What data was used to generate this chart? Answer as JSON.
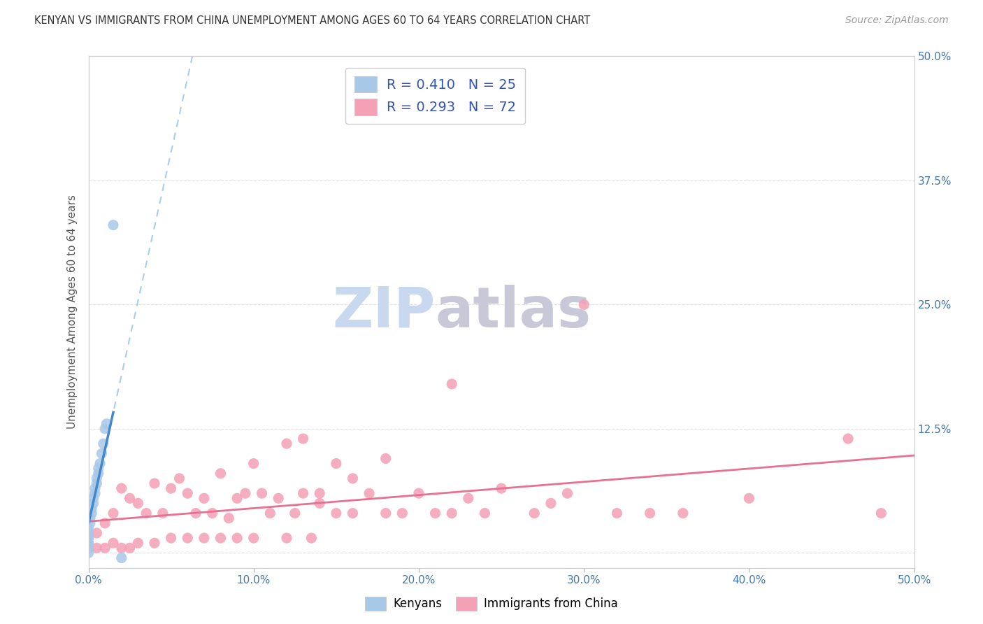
{
  "title": "KENYAN VS IMMIGRANTS FROM CHINA UNEMPLOYMENT AMONG AGES 60 TO 64 YEARS CORRELATION CHART",
  "source": "Source: ZipAtlas.com",
  "ylabel": "Unemployment Among Ages 60 to 64 years",
  "xlim": [
    0.0,
    0.5
  ],
  "ylim": [
    0.0,
    0.5
  ],
  "xticks": [
    0.0,
    0.1,
    0.2,
    0.3,
    0.4,
    0.5
  ],
  "yticks": [
    0.0,
    0.125,
    0.25,
    0.375,
    0.5
  ],
  "xticklabels": [
    "0.0%",
    "10.0%",
    "20.0%",
    "30.0%",
    "40.0%",
    "50.0%"
  ],
  "yticklabels_right": [
    "",
    "12.5%",
    "25.0%",
    "37.5%",
    "50.0%"
  ],
  "kenyan_color": "#a8c8e8",
  "china_color": "#f4a0b5",
  "kenyan_line_color": "#4488cc",
  "china_line_color": "#e87090",
  "kenyan_R": 0.41,
  "kenyan_N": 25,
  "china_R": 0.293,
  "china_N": 72,
  "kenyan_scatter_x": [
    0.0,
    0.0,
    0.0,
    0.0,
    0.0,
    0.0,
    0.001,
    0.001,
    0.002,
    0.002,
    0.003,
    0.003,
    0.004,
    0.004,
    0.005,
    0.005,
    0.006,
    0.006,
    0.007,
    0.008,
    0.009,
    0.01,
    0.011,
    0.015,
    0.02
  ],
  "kenyan_scatter_y": [
    0.0,
    0.005,
    0.01,
    0.015,
    0.02,
    0.025,
    0.03,
    0.035,
    0.04,
    0.045,
    0.05,
    0.055,
    0.06,
    0.065,
    0.07,
    0.075,
    0.08,
    0.085,
    0.09,
    0.1,
    0.11,
    0.125,
    0.13,
    0.33,
    -0.005
  ],
  "china_scatter_x": [
    0.0,
    0.0,
    0.0,
    0.005,
    0.005,
    0.01,
    0.01,
    0.015,
    0.015,
    0.02,
    0.02,
    0.025,
    0.025,
    0.03,
    0.03,
    0.035,
    0.04,
    0.04,
    0.045,
    0.05,
    0.05,
    0.055,
    0.06,
    0.06,
    0.065,
    0.07,
    0.07,
    0.075,
    0.08,
    0.08,
    0.085,
    0.09,
    0.09,
    0.095,
    0.1,
    0.1,
    0.105,
    0.11,
    0.115,
    0.12,
    0.12,
    0.125,
    0.13,
    0.13,
    0.135,
    0.14,
    0.14,
    0.15,
    0.15,
    0.16,
    0.16,
    0.17,
    0.18,
    0.18,
    0.19,
    0.2,
    0.21,
    0.22,
    0.22,
    0.23,
    0.24,
    0.25,
    0.27,
    0.28,
    0.29,
    0.3,
    0.32,
    0.34,
    0.36,
    0.4,
    0.46,
    0.48
  ],
  "china_scatter_y": [
    0.005,
    0.01,
    0.015,
    0.005,
    0.02,
    0.005,
    0.03,
    0.01,
    0.04,
    0.005,
    0.065,
    0.005,
    0.055,
    0.01,
    0.05,
    0.04,
    0.01,
    0.07,
    0.04,
    0.015,
    0.065,
    0.075,
    0.015,
    0.06,
    0.04,
    0.015,
    0.055,
    0.04,
    0.015,
    0.08,
    0.035,
    0.015,
    0.055,
    0.06,
    0.015,
    0.09,
    0.06,
    0.04,
    0.055,
    0.015,
    0.11,
    0.04,
    0.06,
    0.115,
    0.015,
    0.05,
    0.06,
    0.04,
    0.09,
    0.04,
    0.075,
    0.06,
    0.04,
    0.095,
    0.04,
    0.06,
    0.04,
    0.04,
    0.17,
    0.055,
    0.04,
    0.065,
    0.04,
    0.05,
    0.06,
    0.25,
    0.04,
    0.04,
    0.04,
    0.055,
    0.115,
    0.04
  ],
  "watermark_zip": "ZIP",
  "watermark_atlas": "atlas",
  "watermark_color_zip": "#c8d8ee",
  "watermark_color_atlas": "#c8c8d8",
  "background_color": "#ffffff",
  "grid_color": "#e0e0e0"
}
